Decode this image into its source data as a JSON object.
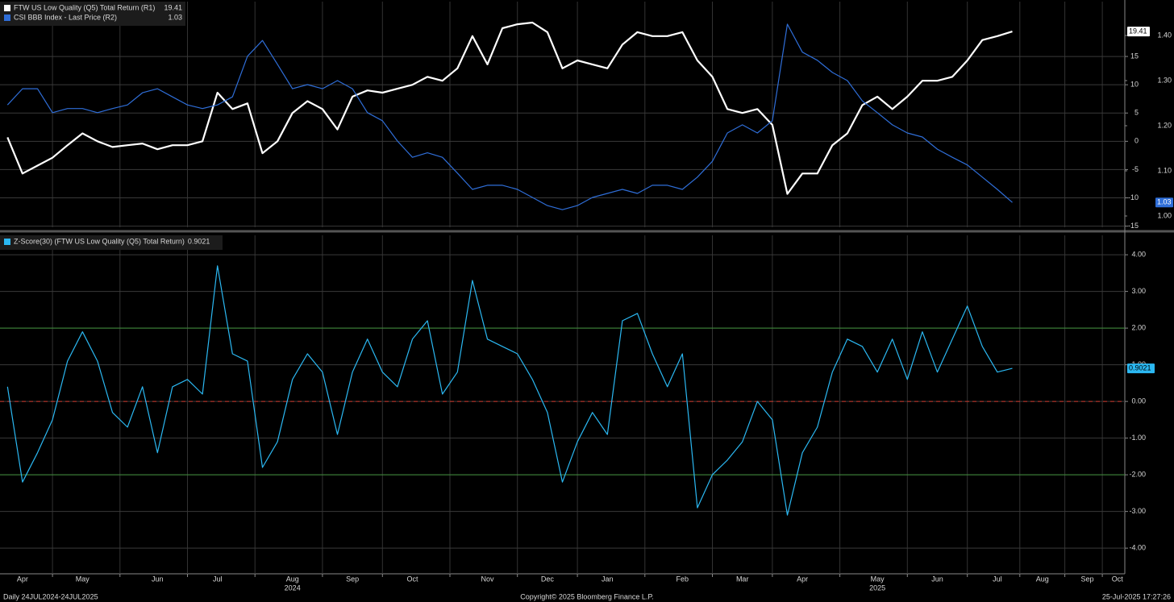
{
  "chart_data": [
    {
      "type": "line",
      "series": [
        {
          "name": "FTW US Low Quality (Q5) Total Return (R1)",
          "color": "#ffffff",
          "axis": "y",
          "values": [
            0.7,
            -5.7,
            -4.3,
            -2.9,
            -0.7,
            1.4,
            0,
            -1,
            -0.7,
            -0.4,
            -1.4,
            -0.7,
            -0.7,
            0,
            8.6,
            5.7,
            6.7,
            -2.1,
            0,
            5,
            7.1,
            5.7,
            2.1,
            7.9,
            9,
            8.6,
            9.3,
            10,
            11.4,
            10.7,
            12.9,
            18.6,
            13.6,
            20,
            20.7,
            21,
            19.3,
            12.9,
            14.3,
            13.6,
            12.9,
            17.1,
            19.3,
            18.6,
            18.6,
            19.3,
            14.3,
            11.4,
            5.7,
            5,
            5.7,
            2.9,
            -9.3,
            -5.7,
            -5.7,
            -0.7,
            1.4,
            6.4,
            7.9,
            5.7,
            7.9,
            10.7,
            10.7,
            11.4,
            14.3,
            17.9,
            18.6,
            19.41,
            null,
            null,
            null,
            null,
            null,
            null,
            null
          ]
        },
        {
          "name": "CSI BBB Index - Last Price (R2)",
          "color": "#2f6ed8",
          "axis": "y2",
          "values": [
            1.246,
            1.282,
            1.282,
            1.229,
            1.238,
            1.238,
            1.229,
            1.238,
            1.246,
            1.273,
            1.282,
            1.264,
            1.246,
            1.238,
            1.246,
            1.264,
            1.354,
            1.389,
            1.336,
            1.282,
            1.291,
            1.282,
            1.3,
            1.282,
            1.229,
            1.211,
            1.166,
            1.13,
            1.14,
            1.13,
            1.095,
            1.059,
            1.068,
            1.068,
            1.059,
            1.041,
            1.023,
            1.014,
            1.023,
            1.041,
            1.05,
            1.059,
            1.05,
            1.068,
            1.068,
            1.059,
            1.086,
            1.121,
            1.184,
            1.202,
            1.184,
            1.211,
            1.425,
            1.363,
            1.345,
            1.318,
            1.3,
            1.255,
            1.229,
            1.202,
            1.184,
            1.175,
            1.148,
            1.13,
            1.113,
            1.086,
            1.059,
            1.03,
            null,
            null,
            null,
            null,
            null,
            null,
            null
          ]
        }
      ],
      "ylim": [
        -15.2,
        24.7
      ],
      "yticks": [
        -15,
        -10,
        -5,
        0,
        5,
        10,
        15
      ],
      "y2lim": [
        0.975,
        1.475
      ],
      "y2ticks": [
        {
          "value": 1.0,
          "label": "1.00"
        },
        {
          "value": 1.1,
          "label": "1.10"
        },
        {
          "value": 1.2,
          "label": "1.20"
        },
        {
          "value": 1.3,
          "label": "1.30"
        },
        {
          "value": 1.4,
          "label": "1.40"
        }
      ],
      "grid": true
    },
    {
      "type": "line",
      "categories": [
        null,
        "Apr",
        null,
        null,
        null,
        "May",
        null,
        null,
        null,
        null,
        "Jun",
        null,
        null,
        null,
        "Jul",
        null,
        null,
        null,
        null,
        "Aug",
        null,
        null,
        null,
        "Sep",
        null,
        null,
        null,
        "Oct",
        null,
        null,
        null,
        null,
        "Nov",
        null,
        null,
        null,
        "Dec",
        null,
        null,
        null,
        "Jan",
        null,
        null,
        null,
        null,
        "Feb",
        null,
        null,
        null,
        "Mar",
        null,
        null,
        null,
        "Apr",
        null,
        null,
        null,
        null,
        "May",
        null,
        null,
        null,
        "Jun",
        null,
        null,
        null,
        "Jul",
        null,
        null,
        "Aug",
        null,
        null,
        "Sep",
        null,
        "Oct"
      ],
      "year_labels": [
        null,
        null,
        null,
        null,
        null,
        null,
        null,
        null,
        null,
        null,
        null,
        null,
        null,
        null,
        null,
        null,
        null,
        null,
        null,
        "2024",
        null,
        null,
        null,
        null,
        null,
        null,
        null,
        null,
        null,
        null,
        null,
        null,
        null,
        null,
        null,
        null,
        null,
        null,
        null,
        null,
        null,
        null,
        null,
        null,
        null,
        null,
        null,
        null,
        null,
        null,
        null,
        null,
        null,
        null,
        null,
        null,
        null,
        null,
        "2025",
        null,
        null,
        null,
        null,
        null,
        null,
        null,
        null,
        null,
        null,
        null,
        null,
        null,
        null,
        null,
        null
      ],
      "series": [
        {
          "name": "Z-Score(30) (FTW US Low Quality (Q5) Total Return)",
          "color": "#2bb8f2",
          "values": [
            0.4,
            -2.2,
            -1.4,
            -0.5,
            1.1,
            1.9,
            1.1,
            -0.3,
            -0.7,
            0.4,
            -1.4,
            0.4,
            0.6,
            0.2,
            3.7,
            1.3,
            1.1,
            -1.8,
            -1.1,
            0.6,
            1.3,
            0.8,
            -0.9,
            0.8,
            1.7,
            0.8,
            0.4,
            1.7,
            2.2,
            0.2,
            0.8,
            3.3,
            1.7,
            1.5,
            1.3,
            0.6,
            -0.3,
            -2.2,
            -1.1,
            -0.3,
            -0.9,
            2.2,
            2.4,
            1.3,
            0.4,
            1.3,
            -2.9,
            -2,
            -1.6,
            -1.1,
            0,
            -0.5,
            -3.1,
            -1.4,
            -0.7,
            0.8,
            1.7,
            1.5,
            0.8,
            1.7,
            0.6,
            1.9,
            0.8,
            1.7,
            2.6,
            1.5,
            0.8,
            0.9021,
            null,
            null,
            null,
            null,
            null,
            null,
            null
          ]
        }
      ],
      "ylim": [
        -4.7,
        4.53
      ],
      "yticks": [
        {
          "value": -4,
          "label": "-4.00"
        },
        {
          "value": -3,
          "label": "-3.00"
        },
        {
          "value": -2,
          "label": "-2.00"
        },
        {
          "value": -1,
          "label": "-1.00"
        },
        {
          "value": 0,
          "label": "0.00"
        },
        {
          "value": 1,
          "label": "1.00"
        },
        {
          "value": 2,
          "label": "2.00"
        },
        {
          "value": 3,
          "label": "3.00"
        },
        {
          "value": 4,
          "label": "4.00"
        }
      ],
      "reference_lines": [
        {
          "value": 2,
          "color": "#3f8f3a"
        },
        {
          "value": -2,
          "color": "#3f8f3a"
        },
        {
          "value": 0,
          "color": "#d0392b",
          "dashed": true
        }
      ],
      "grid": true
    }
  ],
  "footer": {
    "left": "Daily 24JUL2024-24JUL2025",
    "center": "Copyright© 2025 Bloomberg Finance L.P.",
    "right": "25-Jul-2025 17:27:26"
  }
}
